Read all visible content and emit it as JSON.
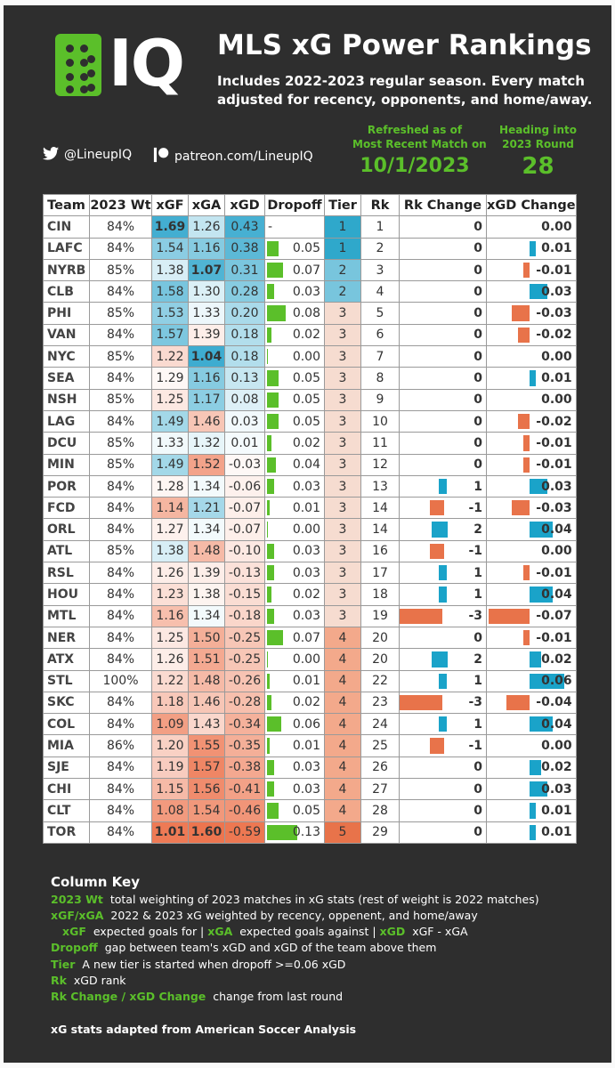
{
  "header": {
    "logo_text": "IQ",
    "title": "MLS xG Power Rankings",
    "subtitle_1": "Includes 2022-2023 regular season. Every match",
    "subtitle_2": "adjusted for recency, opponents, and home/away.",
    "twitter": "@LineupIQ",
    "patreon": "patreon.com/LineupIQ",
    "refreshed_label_1": "Refreshed as of",
    "refreshed_label_2": "Most Recent Match on",
    "refreshed_value": "10/1/2023",
    "heading_label_1": "Heading into",
    "heading_label_2": "2023 Round",
    "heading_value": "28"
  },
  "colors": {
    "background": "#2e2e2e",
    "accent": "#5bbf2a",
    "positive": "#1aa3c9",
    "negative": "#e8734a"
  },
  "chart_data": {
    "type": "table",
    "columns": [
      "Team",
      "2023 Wt",
      "xGF",
      "xGA",
      "xGD",
      "Dropoff",
      "Tier",
      "Rk",
      "Rk Change",
      "xGD Change"
    ],
    "rows": [
      [
        "CIN",
        "84%",
        "1.69",
        "1.26",
        "0.43",
        "-",
        "1",
        "1",
        "0",
        "0.00"
      ],
      [
        "LAFC",
        "84%",
        "1.54",
        "1.16",
        "0.38",
        "0.05",
        "1",
        "2",
        "0",
        "0.01"
      ],
      [
        "NYRB",
        "85%",
        "1.38",
        "1.07",
        "0.31",
        "0.07",
        "2",
        "3",
        "0",
        "-0.01"
      ],
      [
        "CLB",
        "84%",
        "1.58",
        "1.30",
        "0.28",
        "0.03",
        "2",
        "4",
        "0",
        "0.03"
      ],
      [
        "PHI",
        "85%",
        "1.53",
        "1.33",
        "0.20",
        "0.08",
        "3",
        "5",
        "0",
        "-0.03"
      ],
      [
        "VAN",
        "84%",
        "1.57",
        "1.39",
        "0.18",
        "0.02",
        "3",
        "6",
        "0",
        "-0.02"
      ],
      [
        "NYC",
        "85%",
        "1.22",
        "1.04",
        "0.18",
        "0.00",
        "3",
        "7",
        "0",
        "0.00"
      ],
      [
        "SEA",
        "84%",
        "1.29",
        "1.16",
        "0.13",
        "0.05",
        "3",
        "8",
        "0",
        "0.01"
      ],
      [
        "NSH",
        "85%",
        "1.25",
        "1.17",
        "0.08",
        "0.05",
        "3",
        "9",
        "0",
        "0.00"
      ],
      [
        "LAG",
        "84%",
        "1.49",
        "1.46",
        "0.03",
        "0.05",
        "3",
        "10",
        "0",
        "-0.02"
      ],
      [
        "DCU",
        "85%",
        "1.33",
        "1.32",
        "0.01",
        "0.02",
        "3",
        "11",
        "0",
        "-0.01"
      ],
      [
        "MIN",
        "85%",
        "1.49",
        "1.52",
        "-0.03",
        "0.04",
        "3",
        "12",
        "0",
        "-0.01"
      ],
      [
        "POR",
        "84%",
        "1.28",
        "1.34",
        "-0.06",
        "0.03",
        "3",
        "13",
        "1",
        "0.03"
      ],
      [
        "FCD",
        "84%",
        "1.14",
        "1.21",
        "-0.07",
        "0.01",
        "3",
        "14",
        "-1",
        "-0.03"
      ],
      [
        "ORL",
        "84%",
        "1.27",
        "1.34",
        "-0.07",
        "0.00",
        "3",
        "14",
        "2",
        "0.04"
      ],
      [
        "ATL",
        "85%",
        "1.38",
        "1.48",
        "-0.10",
        "0.03",
        "3",
        "16",
        "-1",
        "0.00"
      ],
      [
        "RSL",
        "84%",
        "1.26",
        "1.39",
        "-0.13",
        "0.03",
        "3",
        "17",
        "1",
        "-0.01"
      ],
      [
        "HOU",
        "84%",
        "1.23",
        "1.38",
        "-0.15",
        "0.02",
        "3",
        "18",
        "1",
        "0.04"
      ],
      [
        "MTL",
        "84%",
        "1.16",
        "1.34",
        "-0.18",
        "0.03",
        "3",
        "19",
        "-3",
        "-0.07"
      ],
      [
        "NER",
        "84%",
        "1.25",
        "1.50",
        "-0.25",
        "0.07",
        "4",
        "20",
        "0",
        "-0.01"
      ],
      [
        "ATX",
        "84%",
        "1.26",
        "1.51",
        "-0.25",
        "0.00",
        "4",
        "20",
        "2",
        "0.02"
      ],
      [
        "STL",
        "100%",
        "1.22",
        "1.48",
        "-0.26",
        "0.01",
        "4",
        "22",
        "1",
        "0.06"
      ],
      [
        "SKC",
        "84%",
        "1.18",
        "1.46",
        "-0.28",
        "0.02",
        "4",
        "23",
        "-3",
        "-0.04"
      ],
      [
        "COL",
        "84%",
        "1.09",
        "1.43",
        "-0.34",
        "0.06",
        "4",
        "24",
        "1",
        "0.04"
      ],
      [
        "MIA",
        "86%",
        "1.20",
        "1.55",
        "-0.35",
        "0.01",
        "4",
        "25",
        "-1",
        "0.00"
      ],
      [
        "SJE",
        "84%",
        "1.19",
        "1.57",
        "-0.38",
        "0.03",
        "4",
        "26",
        "0",
        "0.02"
      ],
      [
        "CHI",
        "84%",
        "1.15",
        "1.56",
        "-0.41",
        "0.03",
        "4",
        "27",
        "0",
        "0.03"
      ],
      [
        "CLT",
        "84%",
        "1.08",
        "1.54",
        "-0.46",
        "0.05",
        "4",
        "28",
        "0",
        "0.01"
      ],
      [
        "TOR",
        "84%",
        "1.01",
        "1.60",
        "-0.59",
        "0.13",
        "5",
        "29",
        "0",
        "0.01"
      ]
    ]
  },
  "key": {
    "title": "Column Key",
    "wt_term": "2023 Wt",
    "wt_desc": "total weighting of 2023 matches in xG stats (rest of weight is 2022 matches)",
    "xg_term": "xGF/xGA",
    "xg_desc": "2022 & 2023 xG weighted by recency, oppenent, and home/away",
    "xgf_term": "xGF",
    "xgf_desc": "expected goals for  |",
    "xga_term": "xGA",
    "xga_desc": "expected goals against  |",
    "xgd_term": "xGD",
    "xgd_desc": "xGF - xGA",
    "drop_term": "Dropoff",
    "drop_desc": "gap between team's xGD and xGD of the team above them",
    "tier_term": "Tier",
    "tier_desc": "A new tier is started when dropoff >=0.06 xGD",
    "rk_term": "Rk",
    "rk_desc": "xGD rank",
    "chg_term": "Rk Change / xGD Change",
    "chg_desc": "change from last round"
  },
  "footer_note": "xG stats adapted from American Soccer Analysis"
}
